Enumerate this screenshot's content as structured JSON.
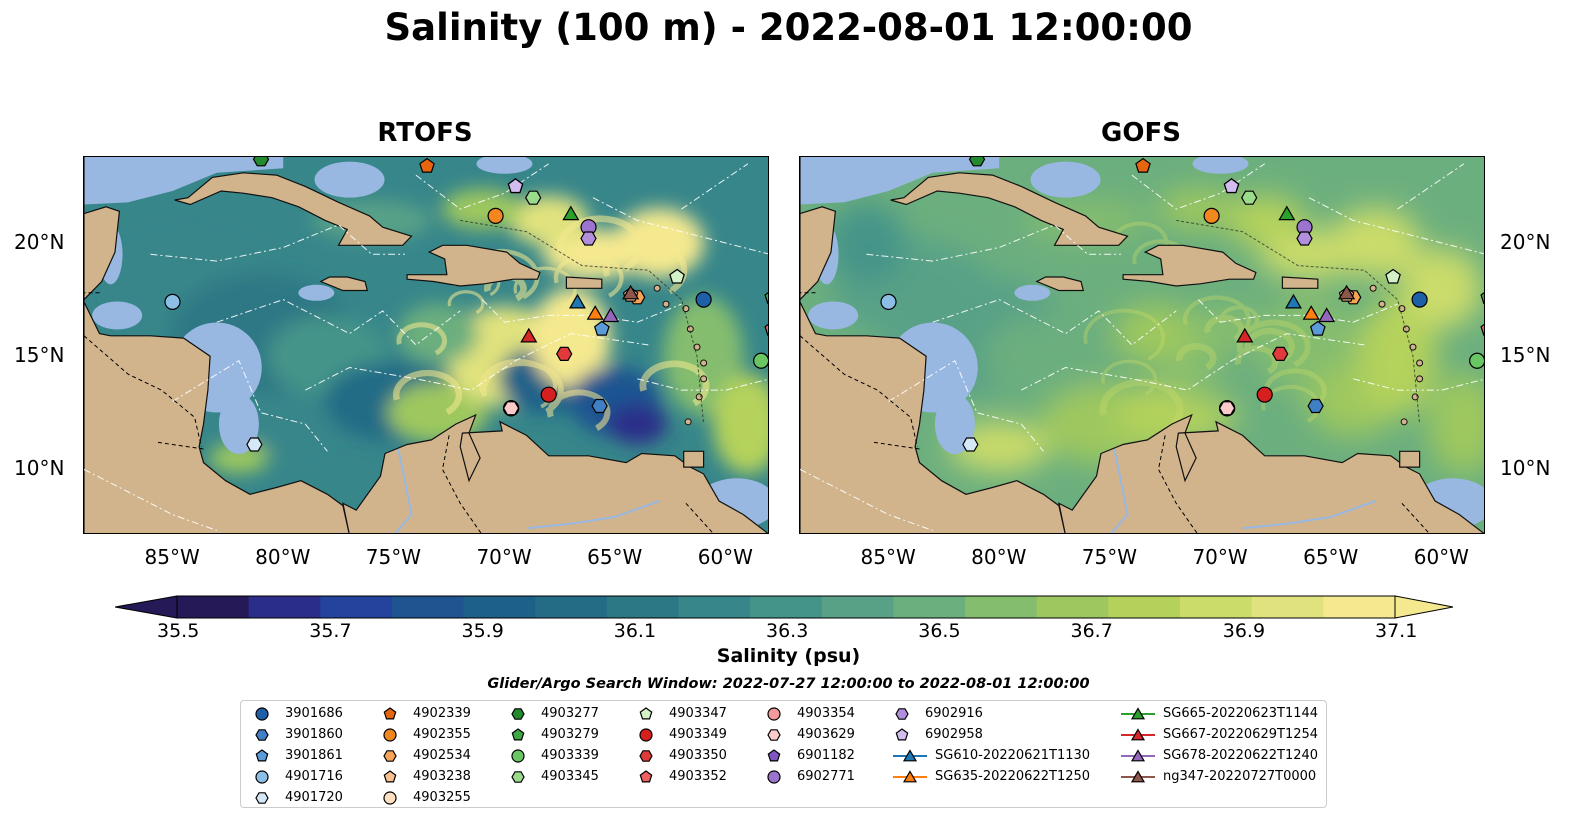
{
  "title": "Salinity (100 m) - 2022-08-01 12:00:00",
  "panels": [
    {
      "title": "RTOFS"
    },
    {
      "title": "GOFS"
    }
  ],
  "axes": {
    "lon_labels": [
      "85°W",
      "80°W",
      "75°W",
      "70°W",
      "65°W",
      "60°W"
    ],
    "lat_labels": [
      "20°N",
      "15°N",
      "10°N"
    ],
    "lon_range": [
      -89,
      -58
    ],
    "lat_range": [
      7.1,
      23.8
    ]
  },
  "colorbar": {
    "label": "Salinity (psu)",
    "ticks": [
      "35.5",
      "35.7",
      "35.9",
      "36.1",
      "36.3",
      "36.5",
      "36.7",
      "36.9",
      "37.1"
    ],
    "range": [
      35.5,
      37.2
    ],
    "colors": [
      "#251a57",
      "#2b2d8a",
      "#23439c",
      "#1e5591",
      "#1d6189",
      "#246c86",
      "#2d7885",
      "#37868a",
      "#459489",
      "#58a187",
      "#6caf7e",
      "#85bd6e",
      "#9ec85f",
      "#b4d25b",
      "#cbdc6b",
      "#e0e27d",
      "#f5e98f"
    ],
    "extend": "both"
  },
  "map_colors": {
    "land": "#d2b48c",
    "shallow": "#98b8e2",
    "pacific": "#251a57",
    "border": "#111111",
    "eez": "#ffffff"
  },
  "legend": {
    "title": "Glider/Argo Search Window: 2022-07-27 12:00:00 to 2022-08-01 12:00:00",
    "columns": [
      [
        {
          "label": "3901686",
          "marker": "circle",
          "color": "#1f5fa8"
        },
        {
          "label": "3901860",
          "marker": "hexagon",
          "color": "#3f7fc4"
        },
        {
          "label": "3901861",
          "marker": "pentagon",
          "color": "#5a9bd8"
        },
        {
          "label": "4901716",
          "marker": "circle",
          "color": "#8dbfe6"
        },
        {
          "label": "4901720",
          "marker": "hexagon",
          "color": "#d4e8f6"
        }
      ],
      [
        {
          "label": "4902339",
          "marker": "pentagon",
          "color": "#e8650f"
        },
        {
          "label": "4902355",
          "marker": "circle",
          "color": "#f2861f"
        },
        {
          "label": "4902534",
          "marker": "hexagon",
          "color": "#f8a457"
        },
        {
          "label": "4903238",
          "marker": "pentagon",
          "color": "#f9c08f"
        },
        {
          "label": "4903255",
          "marker": "circle",
          "color": "#fde0c0"
        }
      ],
      [
        {
          "label": "4903277",
          "marker": "hexagon",
          "color": "#238b2e"
        },
        {
          "label": "4903279",
          "marker": "pentagon",
          "color": "#3fa845"
        },
        {
          "label": "4903339",
          "marker": "circle",
          "color": "#6ac663"
        },
        {
          "label": "4903345",
          "marker": "hexagon",
          "color": "#9bdb8c"
        },
        {
          "label": "",
          "marker": "none",
          "color": ""
        }
      ],
      [
        {
          "label": "4903347",
          "marker": "pentagon",
          "color": "#d4f2c8"
        },
        {
          "label": "4903349",
          "marker": "circle",
          "color": "#d62020"
        },
        {
          "label": "4903350",
          "marker": "hexagon",
          "color": "#e03a3a"
        },
        {
          "label": "4903352",
          "marker": "pentagon",
          "color": "#ee6060"
        },
        {
          "label": "",
          "marker": "none",
          "color": ""
        }
      ],
      [
        {
          "label": "4903354",
          "marker": "circle",
          "color": "#f59a9a"
        },
        {
          "label": "4903629",
          "marker": "hexagon",
          "color": "#fbcaca"
        },
        {
          "label": "6901182",
          "marker": "pentagon",
          "color": "#7e57c2"
        },
        {
          "label": "6902771",
          "marker": "circle",
          "color": "#9b74d0"
        },
        {
          "label": "",
          "marker": "none",
          "color": ""
        }
      ],
      [
        {
          "label": "6902916",
          "marker": "hexagon",
          "color": "#b28fdc"
        },
        {
          "label": "6902958",
          "marker": "pentagon",
          "color": "#d3bdf0"
        },
        {
          "label": "SG610-20220621T1130",
          "marker": "triangle-line",
          "color": "#1f77b4"
        },
        {
          "label": "SG635-20220622T1250",
          "marker": "triangle-line",
          "color": "#ff7f0e"
        },
        {
          "label": "",
          "marker": "none",
          "color": ""
        }
      ],
      [
        {
          "label": "SG665-20220623T1144",
          "marker": "triangle-line",
          "color": "#2ca02c"
        },
        {
          "label": "SG667-20220629T1254",
          "marker": "triangle-line",
          "color": "#d62728"
        },
        {
          "label": "SG678-20220622T1240",
          "marker": "triangle-line",
          "color": "#9467bd"
        },
        {
          "label": "ng347-20220727T0000",
          "marker": "triangle-line",
          "color": "#8c564b"
        },
        {
          "label": "",
          "marker": "none",
          "color": ""
        }
      ]
    ]
  },
  "observations": [
    {
      "id": "3901686",
      "lon": -61.0,
      "lat": 17.5
    },
    {
      "id": "3901860",
      "lon": -65.7,
      "lat": 12.8
    },
    {
      "id": "3901861",
      "lon": -65.6,
      "lat": 16.2
    },
    {
      "id": "4901716",
      "lon": -85.0,
      "lat": 17.4
    },
    {
      "id": "4901720",
      "lon": -81.3,
      "lat": 11.1
    },
    {
      "id": "4902339",
      "lon": -73.5,
      "lat": 23.4
    },
    {
      "id": "4902355",
      "lon": -70.4,
      "lat": 21.2
    },
    {
      "id": "4902534",
      "lon": -64.0,
      "lat": 17.6
    },
    {
      "id": "4903238",
      "lon": -64.3,
      "lat": 17.7
    },
    {
      "id": "4903255",
      "lon": -69.7,
      "lat": 12.7
    },
    {
      "id": "4903277",
      "lon": -81.0,
      "lat": 23.7
    },
    {
      "id": "4903279",
      "lon": -57.9,
      "lat": 17.6
    },
    {
      "id": "4903339",
      "lon": -58.4,
      "lat": 14.8
    },
    {
      "id": "4903345",
      "lon": -68.7,
      "lat": 22.0
    },
    {
      "id": "4903347",
      "lon": -62.2,
      "lat": 18.5
    },
    {
      "id": "4903349",
      "lon": -68.0,
      "lat": 13.3
    },
    {
      "id": "4903350",
      "lon": -67.3,
      "lat": 15.1
    },
    {
      "id": "4903352",
      "lon": -57.9,
      "lat": 16.2
    },
    {
      "id": "4903354",
      "lon": -69.7,
      "lat": 12.7
    },
    {
      "id": "4903629",
      "lon": -69.7,
      "lat": 12.7
    },
    {
      "id": "6901182",
      "lon": -69.5,
      "lat": 22.5
    },
    {
      "id": "6902771",
      "lon": -66.2,
      "lat": 20.7
    },
    {
      "id": "6902916",
      "lon": -66.2,
      "lat": 20.2
    },
    {
      "id": "6902958",
      "lon": -69.5,
      "lat": 22.5
    },
    {
      "id": "SG610-20220621T1130",
      "lon": -66.7,
      "lat": 17.4
    },
    {
      "id": "SG635-20220622T1250",
      "lon": -65.9,
      "lat": 16.9
    },
    {
      "id": "SG665-20220623T1144",
      "lon": -67.0,
      "lat": 21.3
    },
    {
      "id": "SG667-20220629T1254",
      "lon": -68.9,
      "lat": 15.9
    },
    {
      "id": "SG678-20220622T1240",
      "lon": -65.2,
      "lat": 16.8
    },
    {
      "id": "ng347-20220727T0000",
      "lon": -64.3,
      "lat": 17.8
    }
  ]
}
